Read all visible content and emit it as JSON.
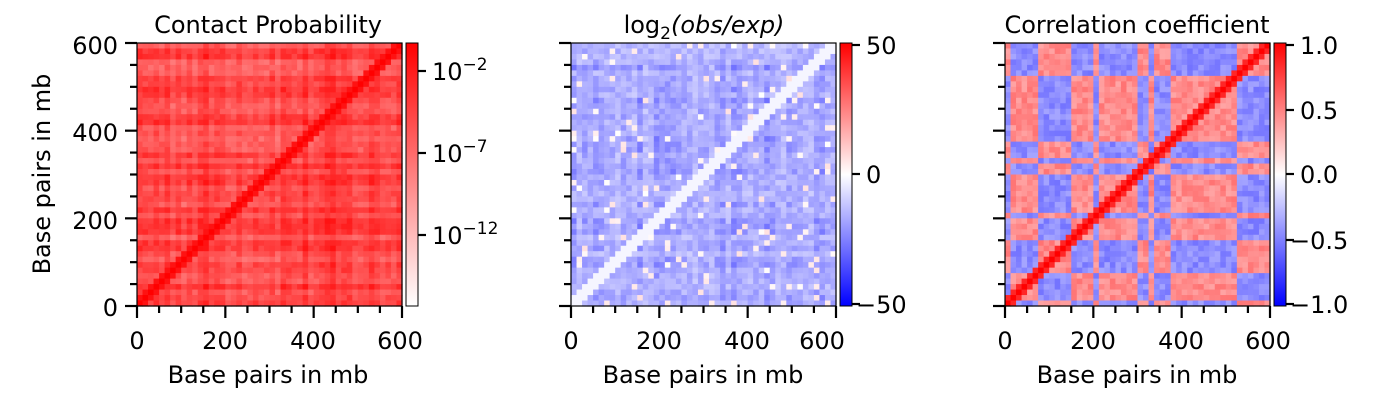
{
  "chart_data": [
    {
      "type": "heatmap",
      "title": "Contact Probability",
      "xlabel": "Base pairs in mb",
      "ylabel": "Base pairs in mb",
      "xlim": [
        0,
        600
      ],
      "ylim": [
        0,
        600
      ],
      "xticks": [
        0,
        200,
        400,
        600
      ],
      "yticks": [
        0,
        200,
        400,
        600
      ],
      "colormap": [
        "#ffffff",
        "#ff0000"
      ],
      "colorbar": {
        "scale": "log",
        "range": [
          1e-15,
          1
        ],
        "ticks": [
          {
            "value": 0.01,
            "base": "10",
            "exp": "−2"
          },
          {
            "value": 1e-07,
            "base": "10",
            "exp": "−7"
          },
          {
            "value": 1e-12,
            "base": "10",
            "exp": "−12"
          }
        ]
      }
    },
    {
      "type": "heatmap",
      "title_base": "log",
      "title_sub": "2",
      "title_arg": "(obs/exp)",
      "xlabel": "Base pairs in mb",
      "ylabel": "",
      "xlim": [
        0,
        600
      ],
      "ylim": [
        0,
        600
      ],
      "xticks": [
        0,
        200,
        400,
        600
      ],
      "colormap": [
        "#0000ff",
        "#ffffff",
        "#ff0000"
      ],
      "colorbar": {
        "scale": "linear",
        "range": [
          -50,
          50
        ],
        "ticks": [
          {
            "value": 50,
            "label": "50"
          },
          {
            "value": 0,
            "label": "0"
          },
          {
            "value": -50,
            "label": "−50"
          }
        ]
      }
    },
    {
      "type": "heatmap",
      "title": "Correlation coefficient",
      "xlabel": "Base pairs in mb",
      "ylabel": "",
      "xlim": [
        0,
        600
      ],
      "ylim": [
        0,
        600
      ],
      "xticks": [
        0,
        200,
        400,
        600
      ],
      "colormap": [
        "#0000ff",
        "#ffffff",
        "#ff0000"
      ],
      "colorbar": {
        "scale": "linear",
        "range": [
          -1,
          1
        ],
        "ticks": [
          {
            "value": 1.0,
            "label": "1.0"
          },
          {
            "value": 0.5,
            "label": "0.5"
          },
          {
            "value": 0.0,
            "label": "0.0"
          },
          {
            "value": -0.5,
            "label": "−0.5"
          },
          {
            "value": -1.0,
            "label": "−1.0"
          }
        ]
      }
    }
  ]
}
